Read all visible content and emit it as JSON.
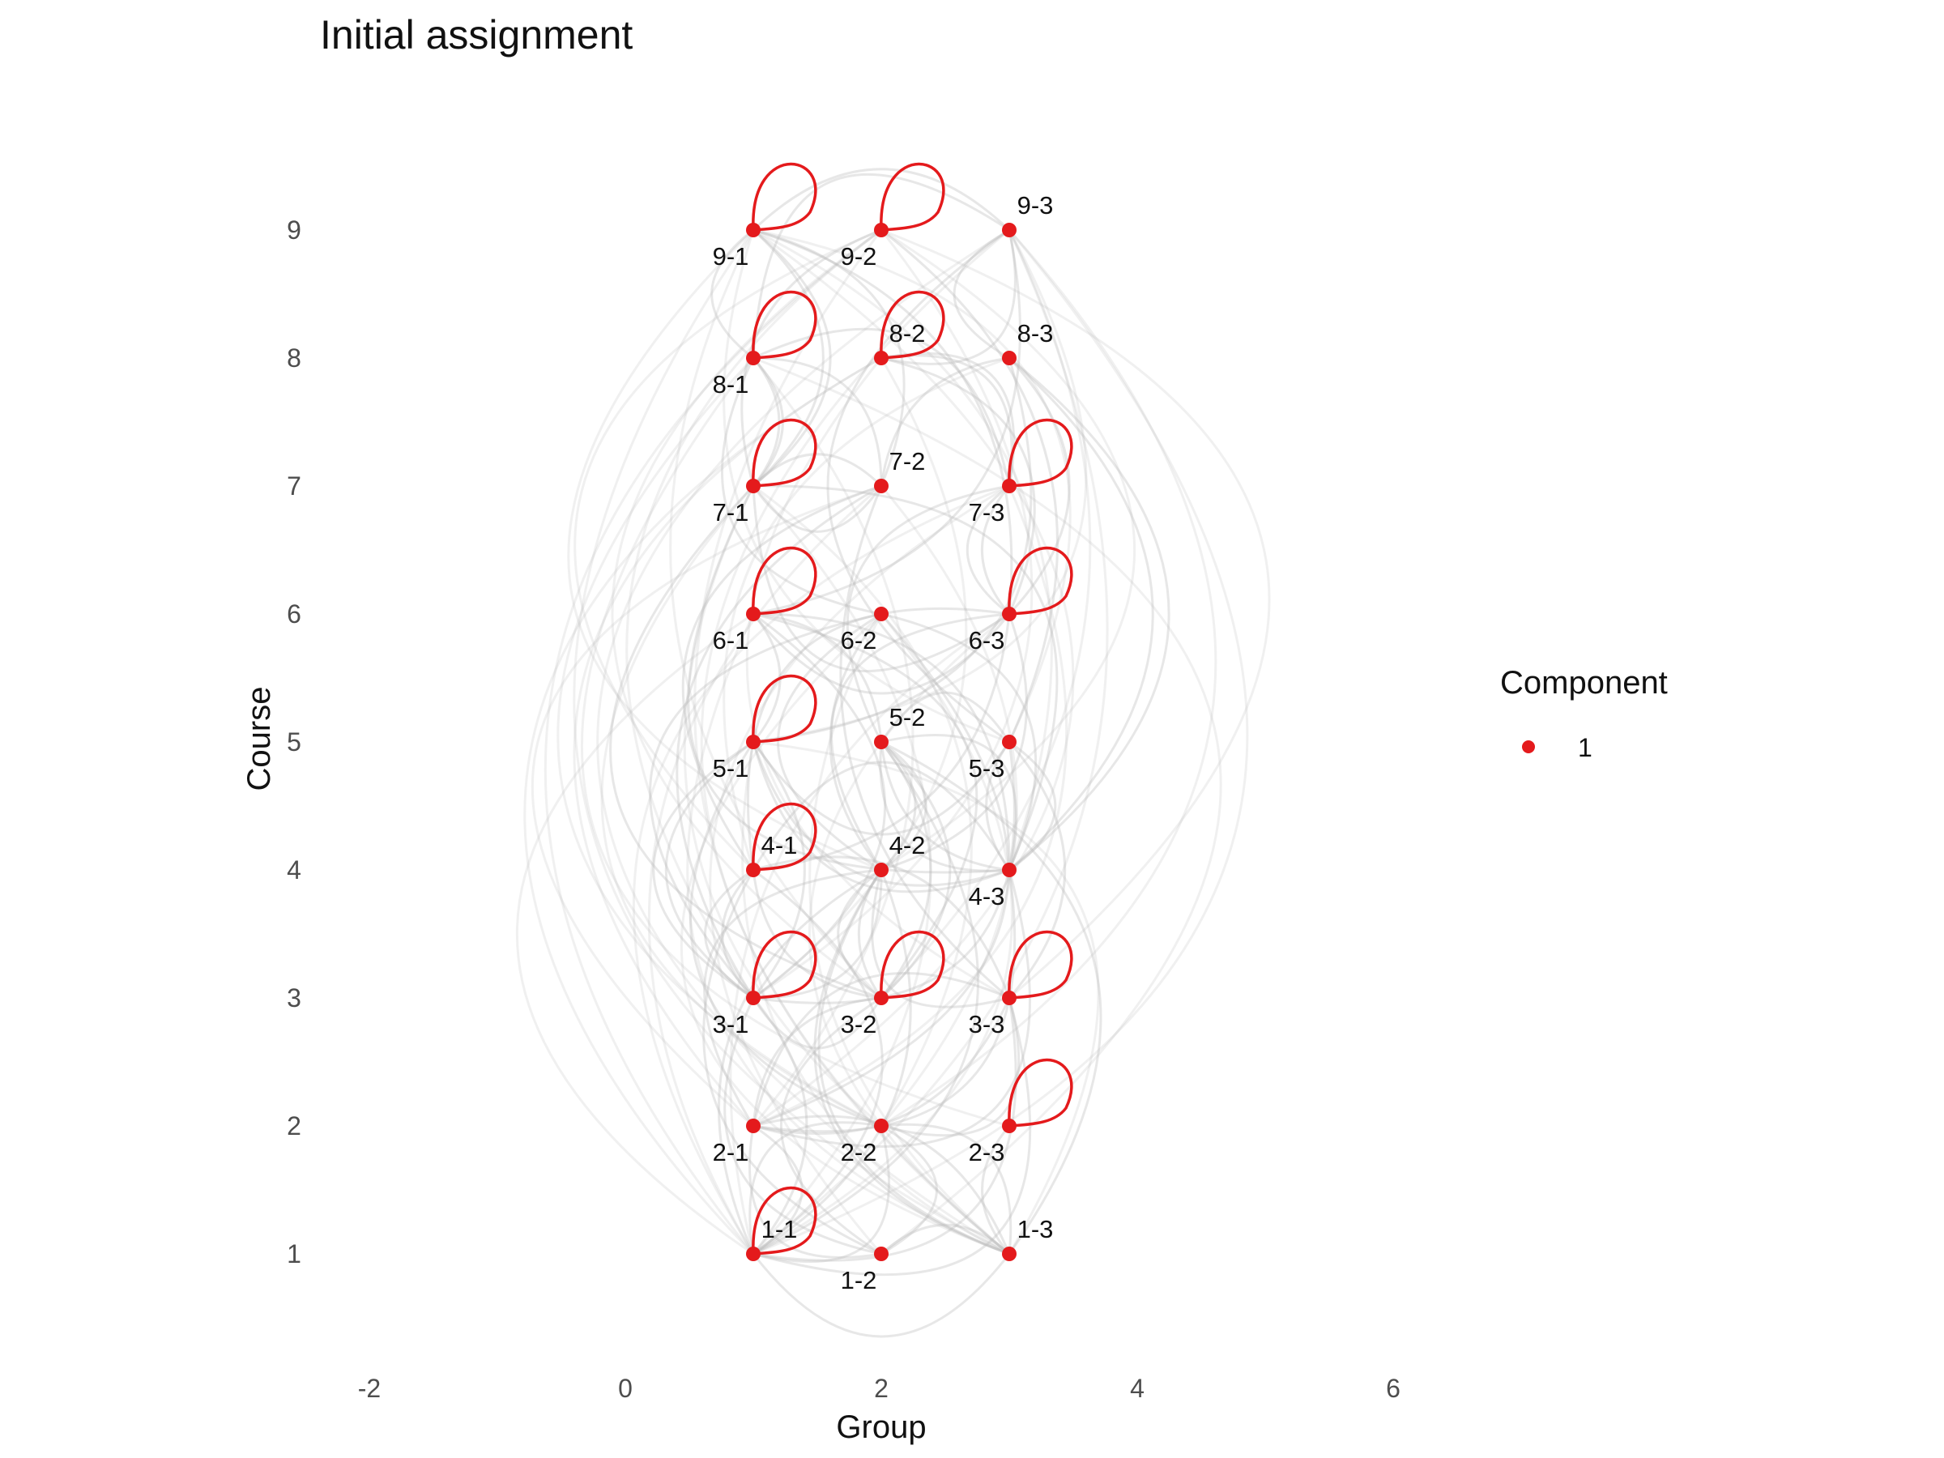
{
  "chart_data": {
    "type": "network",
    "title": "Initial assignment",
    "xlabel": "Group",
    "ylabel": "Course",
    "xlim": [
      -2,
      6
    ],
    "ylim": [
      0.4,
      9.6
    ],
    "x_ticks": [
      "-2",
      "0",
      "2",
      "4",
      "6"
    ],
    "y_ticks": [
      "1",
      "2",
      "3",
      "4",
      "5",
      "6",
      "7",
      "8",
      "9"
    ],
    "grid": false,
    "legend": {
      "title": "Component",
      "placement": "right",
      "entries": [
        {
          "label": "1",
          "color": "#e41a1c"
        }
      ]
    },
    "node_color": "#e41a1c",
    "edge_color": "#bbbbbb",
    "nodes": [
      {
        "label": "1-1",
        "group": 1,
        "course": 1,
        "self_loop": true,
        "label_pos": "above-right"
      },
      {
        "label": "1-2",
        "group": 2,
        "course": 1,
        "self_loop": false,
        "label_pos": "below-left"
      },
      {
        "label": "1-3",
        "group": 3,
        "course": 1,
        "self_loop": false,
        "label_pos": "above-right"
      },
      {
        "label": "2-1",
        "group": 1,
        "course": 2,
        "self_loop": false,
        "label_pos": "below-left"
      },
      {
        "label": "2-2",
        "group": 2,
        "course": 2,
        "self_loop": false,
        "label_pos": "below-left"
      },
      {
        "label": "2-3",
        "group": 3,
        "course": 2,
        "self_loop": true,
        "label_pos": "below-left"
      },
      {
        "label": "3-1",
        "group": 1,
        "course": 3,
        "self_loop": true,
        "label_pos": "below-left"
      },
      {
        "label": "3-2",
        "group": 2,
        "course": 3,
        "self_loop": true,
        "label_pos": "below-left"
      },
      {
        "label": "3-3",
        "group": 3,
        "course": 3,
        "self_loop": true,
        "label_pos": "below-left"
      },
      {
        "label": "4-1",
        "group": 1,
        "course": 4,
        "self_loop": true,
        "label_pos": "above-right"
      },
      {
        "label": "4-2",
        "group": 2,
        "course": 4,
        "self_loop": false,
        "label_pos": "above-right"
      },
      {
        "label": "4-3",
        "group": 3,
        "course": 4,
        "self_loop": false,
        "label_pos": "below-left"
      },
      {
        "label": "5-1",
        "group": 1,
        "course": 5,
        "self_loop": true,
        "label_pos": "below-left"
      },
      {
        "label": "5-2",
        "group": 2,
        "course": 5,
        "self_loop": false,
        "label_pos": "above-right"
      },
      {
        "label": "5-3",
        "group": 3,
        "course": 5,
        "self_loop": false,
        "label_pos": "below-left"
      },
      {
        "label": "6-1",
        "group": 1,
        "course": 6,
        "self_loop": true,
        "label_pos": "below-left"
      },
      {
        "label": "6-2",
        "group": 2,
        "course": 6,
        "self_loop": false,
        "label_pos": "below-left"
      },
      {
        "label": "6-3",
        "group": 3,
        "course": 6,
        "self_loop": true,
        "label_pos": "below-left"
      },
      {
        "label": "7-1",
        "group": 1,
        "course": 7,
        "self_loop": true,
        "label_pos": "below-left"
      },
      {
        "label": "7-2",
        "group": 2,
        "course": 7,
        "self_loop": false,
        "label_pos": "above-right"
      },
      {
        "label": "7-3",
        "group": 3,
        "course": 7,
        "self_loop": true,
        "label_pos": "below-left"
      },
      {
        "label": "8-1",
        "group": 1,
        "course": 8,
        "self_loop": true,
        "label_pos": "below-left"
      },
      {
        "label": "8-2",
        "group": 2,
        "course": 8,
        "self_loop": true,
        "label_pos": "above-right"
      },
      {
        "label": "8-3",
        "group": 3,
        "course": 8,
        "self_loop": false,
        "label_pos": "above-right"
      },
      {
        "label": "9-1",
        "group": 1,
        "course": 9,
        "self_loop": true,
        "label_pos": "below-left"
      },
      {
        "label": "9-2",
        "group": 2,
        "course": 9,
        "self_loop": true,
        "label_pos": "below-left"
      },
      {
        "label": "9-3",
        "group": 3,
        "course": 9,
        "self_loop": false,
        "label_pos": "above-right"
      }
    ]
  }
}
